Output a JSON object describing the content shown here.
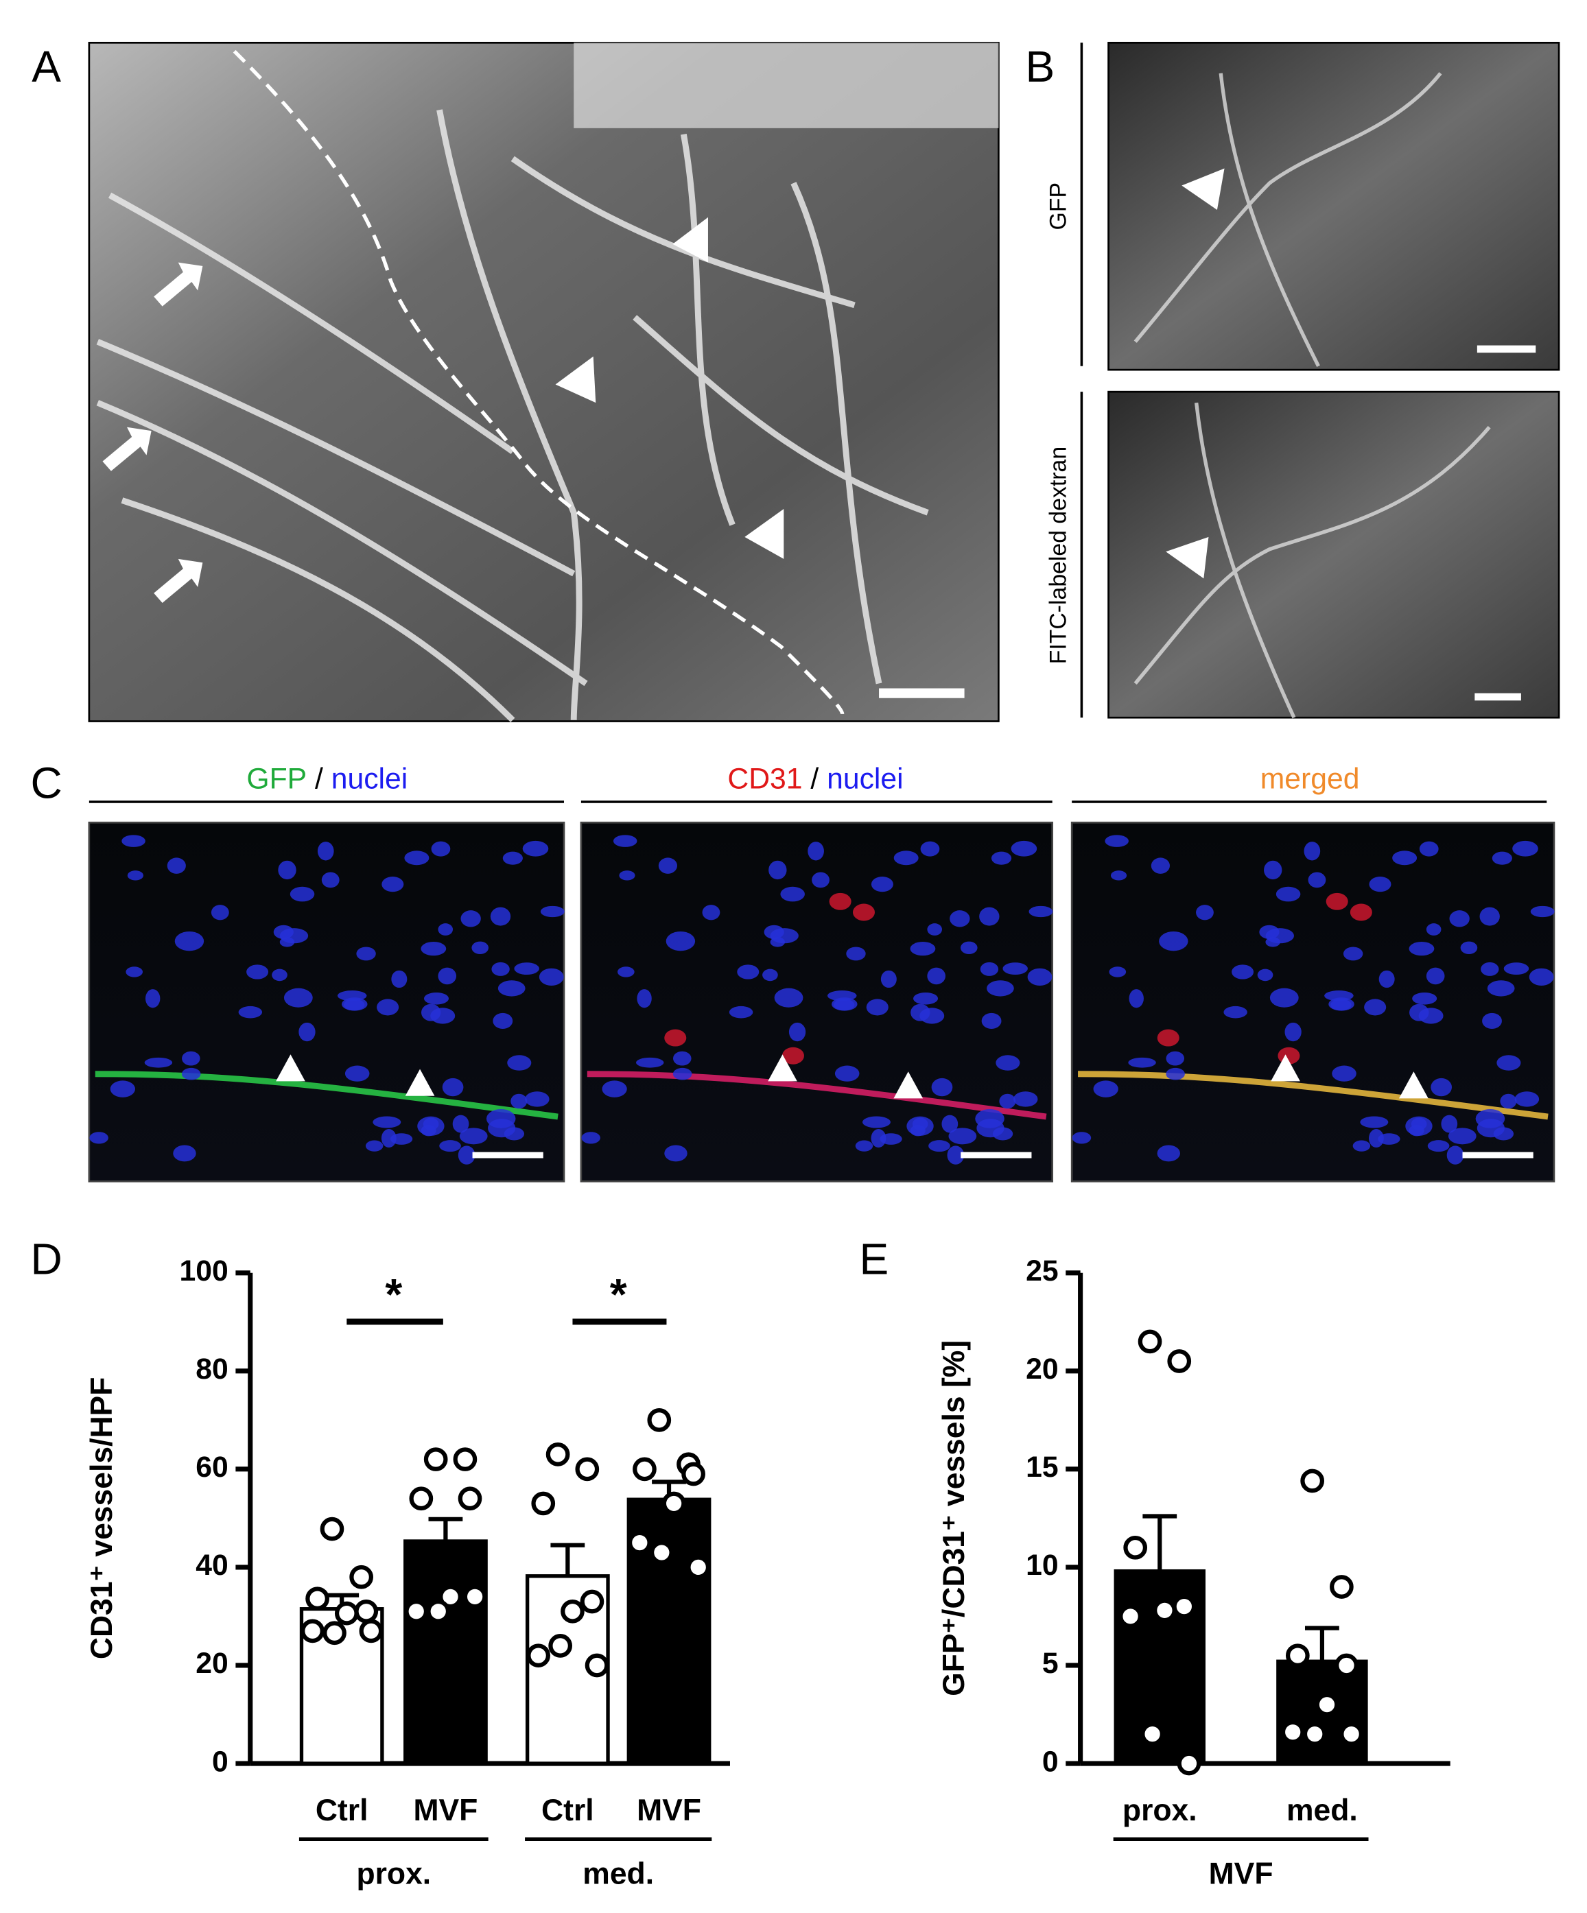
{
  "panel_labels": [
    "A",
    "B",
    "C",
    "D",
    "E"
  ],
  "panel_b": {
    "labels": [
      "GFP",
      "FITC-labeled dextran"
    ]
  },
  "panel_c": {
    "headers": [
      [
        {
          "text": "GFP",
          "color": "#1faa3a"
        },
        {
          "text": " / ",
          "color": "#000000"
        },
        {
          "text": "nuclei",
          "color": "#1c1cf0"
        }
      ],
      [
        {
          "text": "CD31",
          "color": "#e01818"
        },
        {
          "text": " / ",
          "color": "#000000"
        },
        {
          "text": "nuclei",
          "color": "#1c1cf0"
        }
      ],
      [
        {
          "text": "merged",
          "color": "#f08a2a"
        }
      ]
    ]
  },
  "chart_data": [
    {
      "type": "bar",
      "ylabel": "CD31⁺ vessels/HPF",
      "categories": [
        "Ctrl",
        "MVF",
        "Ctrl",
        "MVF"
      ],
      "colors": [
        "#ffffff",
        "#000000",
        "#ffffff",
        "#000000"
      ],
      "values": [
        31.5,
        45.3,
        38.2,
        53.8
      ],
      "errors": [
        2.8,
        4.5,
        6.3,
        3.6
      ],
      "points": [
        [
          47.8,
          38,
          33.6,
          31,
          30.6,
          27,
          26.6,
          27
        ],
        [
          62,
          62,
          54,
          54,
          34,
          31,
          31,
          34
        ],
        [
          63,
          60,
          53,
          33,
          31,
          22,
          24,
          20
        ],
        [
          70,
          61,
          60,
          59,
          53,
          45,
          43,
          40
        ]
      ],
      "group_labels": [
        "prox.",
        "med."
      ],
      "significance": [
        "*",
        "*"
      ],
      "ylim": [
        0,
        100
      ],
      "yticks": [
        0,
        20,
        40,
        60,
        80,
        100
      ]
    },
    {
      "type": "bar",
      "ylabel": "GFP⁺/CD31⁺ vessels [%]",
      "categories": [
        "prox.",
        "med."
      ],
      "colors": [
        "#000000",
        "#000000"
      ],
      "values": [
        9.8,
        5.2
      ],
      "errors": [
        2.8,
        1.7
      ],
      "points": [
        [
          21.5,
          20.5,
          11,
          8,
          7.8,
          7.5,
          1.5,
          0
        ],
        [
          14.4,
          9,
          5.5,
          5,
          3,
          1.6,
          1.5,
          1.5
        ]
      ],
      "group_labels": [
        "MVF"
      ],
      "ylim": [
        0,
        25
      ],
      "yticks": [
        0,
        5,
        10,
        15,
        20,
        25
      ]
    }
  ]
}
